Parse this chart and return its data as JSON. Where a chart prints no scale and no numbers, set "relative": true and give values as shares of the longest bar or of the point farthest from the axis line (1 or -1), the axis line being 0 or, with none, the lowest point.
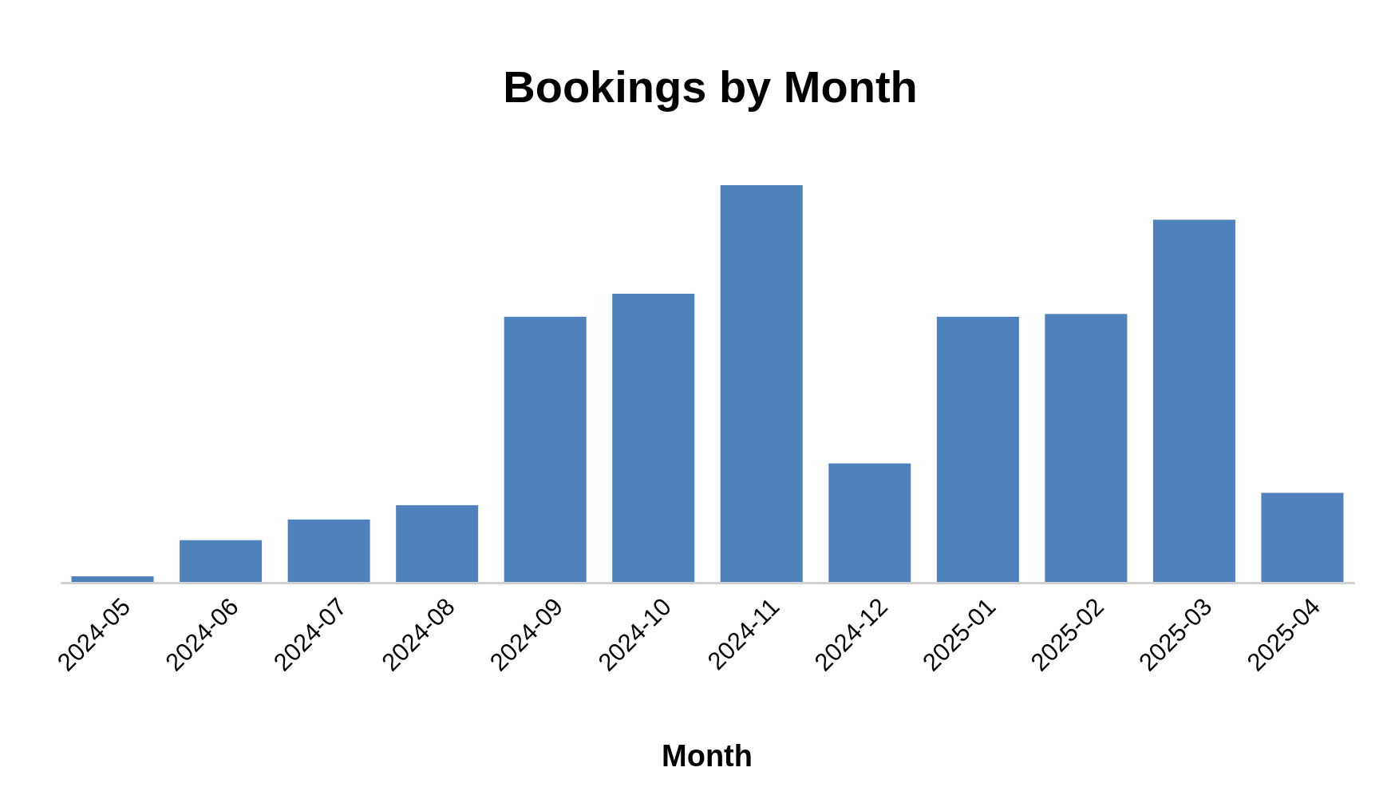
{
  "chart_data": {
    "type": "bar",
    "title": "Bookings by Month",
    "xlabel": "Month",
    "relative": true,
    "color": "#4f81bd",
    "categories": [
      "2024-05",
      "2024-06",
      "2024-07",
      "2024-08",
      "2024-09",
      "2024-10",
      "2024-11",
      "2024-12",
      "2025-01",
      "2025-02",
      "2025-03",
      "2025-04"
    ],
    "values": [
      0.016,
      0.107,
      0.159,
      0.195,
      0.669,
      0.727,
      1,
      0.3,
      0.669,
      0.676,
      0.913,
      0.226
    ]
  }
}
